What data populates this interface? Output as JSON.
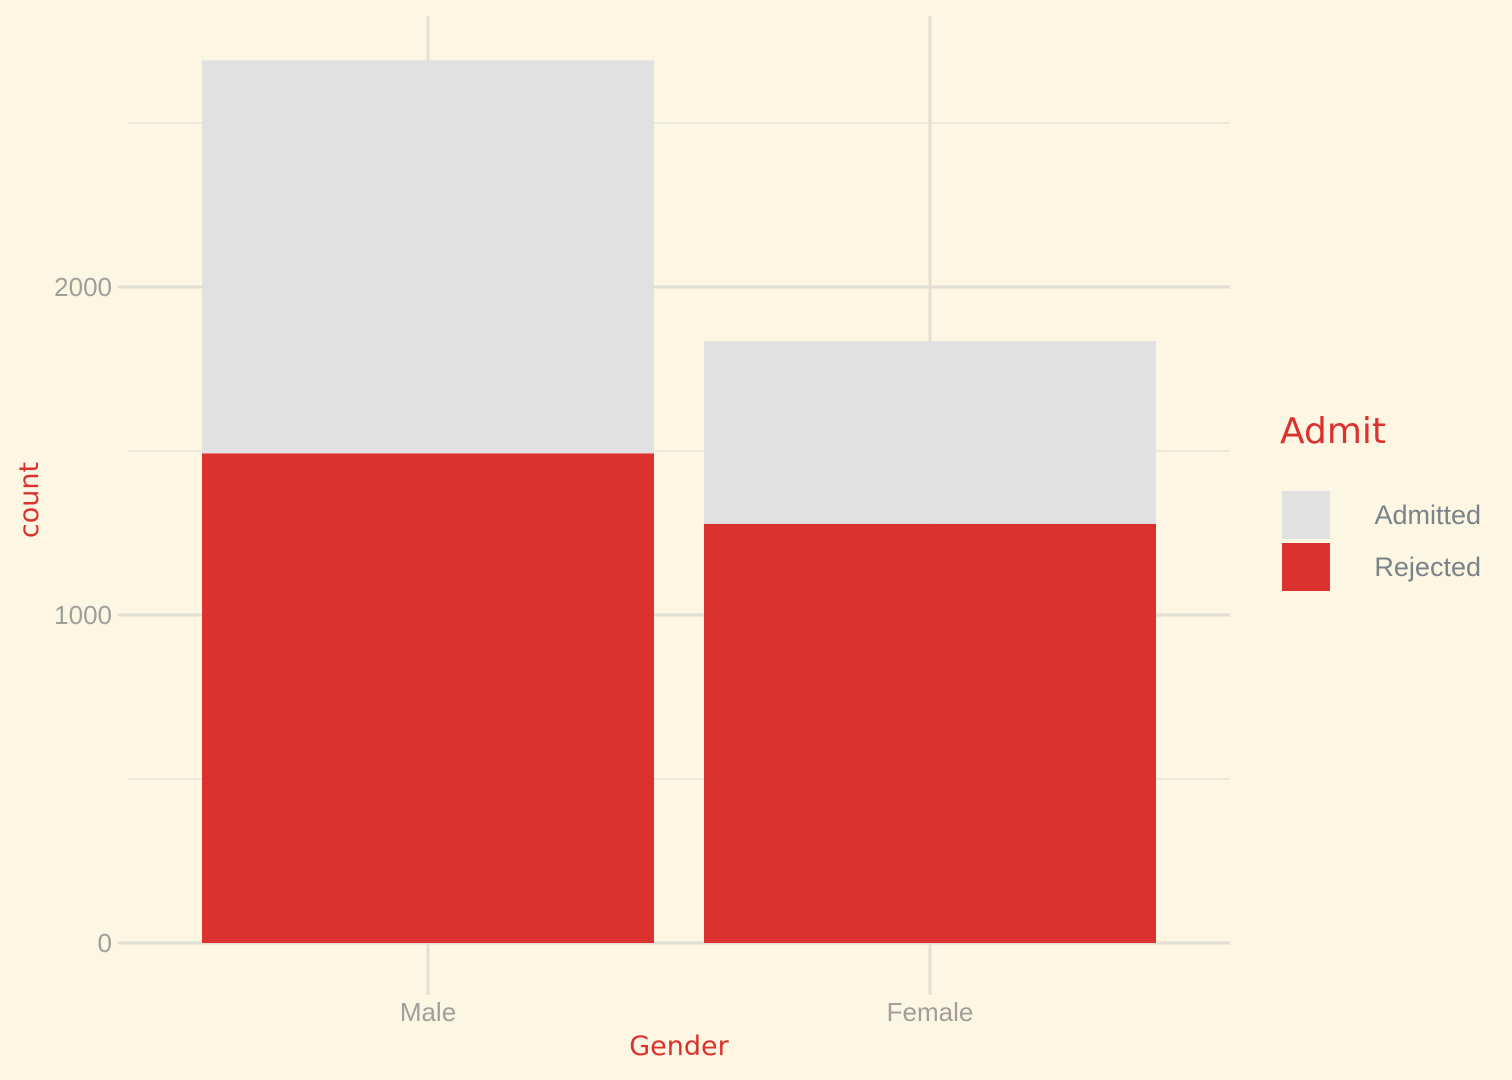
{
  "chart_data": {
    "type": "bar",
    "stacked": true,
    "categories": [
      "Male",
      "Female"
    ],
    "series": [
      {
        "name": "Rejected",
        "values": [
          1493,
          1278
        ],
        "color": "#dc322f"
      },
      {
        "name": "Admitted",
        "values": [
          1198,
          557
        ],
        "color": "#e1e1e1"
      }
    ],
    "xlabel": "Gender",
    "ylabel": "count",
    "yticks": [
      0,
      1000,
      2000
    ],
    "ylim": [
      0,
      2691
    ],
    "grid": true,
    "legend": {
      "title": "Admit",
      "position": "right",
      "entries": [
        {
          "name": "Admitted",
          "color": "#e1e1e1"
        },
        {
          "name": "Rejected",
          "color": "#dc322f"
        }
      ]
    }
  }
}
